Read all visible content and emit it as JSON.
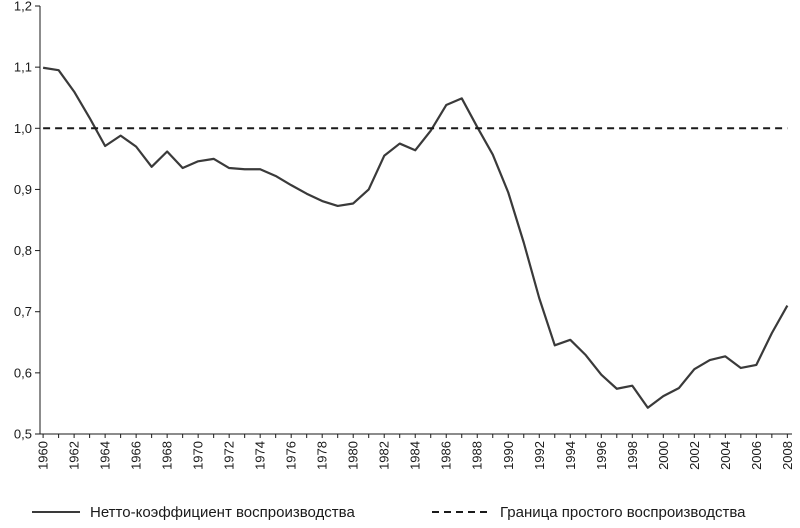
{
  "chart_data": {
    "type": "line",
    "x": [
      1960,
      1961,
      1962,
      1963,
      1964,
      1965,
      1966,
      1967,
      1968,
      1969,
      1970,
      1971,
      1972,
      1973,
      1974,
      1975,
      1976,
      1977,
      1978,
      1979,
      1980,
      1981,
      1982,
      1983,
      1984,
      1985,
      1986,
      1987,
      1988,
      1989,
      1990,
      1991,
      1992,
      1993,
      1994,
      1995,
      1996,
      1997,
      1998,
      1999,
      2000,
      2001,
      2002,
      2003,
      2004,
      2005,
      2006,
      2007,
      2008
    ],
    "x_tick_labels": [
      "1960",
      "1962",
      "1964",
      "1966",
      "1968",
      "1970",
      "1972",
      "1974",
      "1976",
      "1978",
      "1980",
      "1982",
      "1984",
      "1986",
      "1988",
      "1990",
      "1992",
      "1994",
      "1996",
      "1998",
      "2000",
      "2002",
      "2004",
      "2006",
      "2008"
    ],
    "y_tick_labels": [
      "0,5",
      "0,6",
      "0,7",
      "0,8",
      "0,9",
      "1,0",
      "1,1",
      "1,2"
    ],
    "ylim": [
      0.5,
      1.2
    ],
    "xlim": [
      1959.8,
      2008.3
    ],
    "grid": false,
    "legend_position": "bottom",
    "series": [
      {
        "name": "Нетто-коэффициент воспроизводства",
        "style": "solid",
        "color": "#3a3a3a",
        "values": [
          1.099,
          1.095,
          1.06,
          1.017,
          0.971,
          0.988,
          0.97,
          0.937,
          0.962,
          0.935,
          0.946,
          0.95,
          0.935,
          0.933,
          0.933,
          0.922,
          0.907,
          0.893,
          0.881,
          0.873,
          0.877,
          0.9,
          0.955,
          0.975,
          0.964,
          0.996,
          1.038,
          1.049,
          1.002,
          0.957,
          0.895,
          0.813,
          0.722,
          0.645,
          0.654,
          0.629,
          0.597,
          0.574,
          0.579,
          0.543,
          0.562,
          0.575,
          0.606,
          0.621,
          0.627,
          0.608,
          0.613,
          0.665,
          0.71
        ]
      },
      {
        "name": "Граница простого воспроизводства",
        "style": "dashed",
        "color": "#1a1a1a",
        "values": [
          1.0,
          1.0,
          1.0,
          1.0,
          1.0,
          1.0,
          1.0,
          1.0,
          1.0,
          1.0,
          1.0,
          1.0,
          1.0,
          1.0,
          1.0,
          1.0,
          1.0,
          1.0,
          1.0,
          1.0,
          1.0,
          1.0,
          1.0,
          1.0,
          1.0,
          1.0,
          1.0,
          1.0,
          1.0,
          1.0,
          1.0,
          1.0,
          1.0,
          1.0,
          1.0,
          1.0,
          1.0,
          1.0,
          1.0,
          1.0,
          1.0,
          1.0,
          1.0,
          1.0,
          1.0,
          1.0,
          1.0,
          1.0,
          1.0
        ]
      }
    ]
  }
}
